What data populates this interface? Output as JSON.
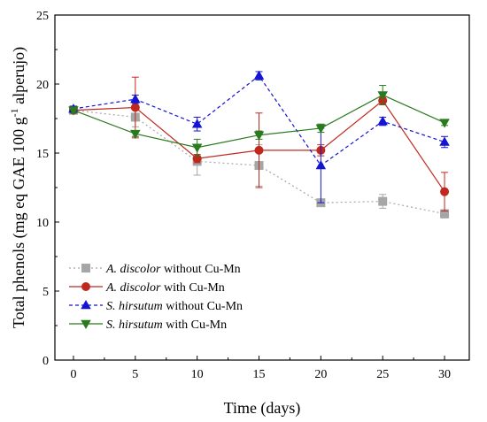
{
  "chart_data": {
    "type": "line",
    "xlabel": "Time (days)",
    "ylabel_main": "Total phenols (mg eq GAE 100 g",
    "ylabel_sup": "-1",
    "ylabel_tail": " alperujo)",
    "xlim": [
      -1.5,
      32
    ],
    "ylim": [
      0,
      25
    ],
    "xticks": [
      0,
      5,
      10,
      15,
      20,
      25,
      30
    ],
    "yticks": [
      0,
      5,
      10,
      15,
      20,
      25
    ],
    "x": [
      0,
      5,
      10,
      15,
      20,
      25,
      30
    ],
    "series": [
      {
        "name_italic": "A. discolor",
        "name_rest": " without Cu-Mn",
        "color": "#a6a6a6",
        "dash": "dotted",
        "marker": "square",
        "values": [
          18.1,
          17.6,
          14.4,
          14.1,
          11.4,
          11.5,
          10.6
        ],
        "errors": [
          0.2,
          0.7,
          1.0,
          1.5,
          0.2,
          0.5,
          0.3
        ]
      },
      {
        "name_italic": "A. discolor",
        "name_rest": " with Cu-Mn",
        "color": "#c0281e",
        "dash": "solid",
        "marker": "circle",
        "values": [
          18.1,
          18.3,
          14.6,
          15.2,
          15.2,
          18.8,
          12.2
        ],
        "errors": [
          0.2,
          2.2,
          0.3,
          2.7,
          0.4,
          0.3,
          1.4
        ]
      },
      {
        "name_italic": "S. hirsutum",
        "name_rest": " without Cu-Mn",
        "color": "#1414d2",
        "dash": "dashed",
        "marker": "triangle-up",
        "values": [
          18.2,
          18.9,
          17.1,
          20.6,
          14.1,
          17.3,
          15.8
        ],
        "errors": [
          0.2,
          0.3,
          0.5,
          0.3,
          2.7,
          0.3,
          0.4
        ]
      },
      {
        "name_italic": "S. hirsutum",
        "name_rest": " with Cu-Mn",
        "color": "#2a7a1e",
        "dash": "solid",
        "marker": "triangle-down",
        "values": [
          18.1,
          16.4,
          15.4,
          16.3,
          16.8,
          19.2,
          17.2
        ],
        "errors": [
          0.2,
          0.2,
          0.6,
          0.3,
          0.3,
          0.7,
          0.2
        ]
      }
    ]
  }
}
